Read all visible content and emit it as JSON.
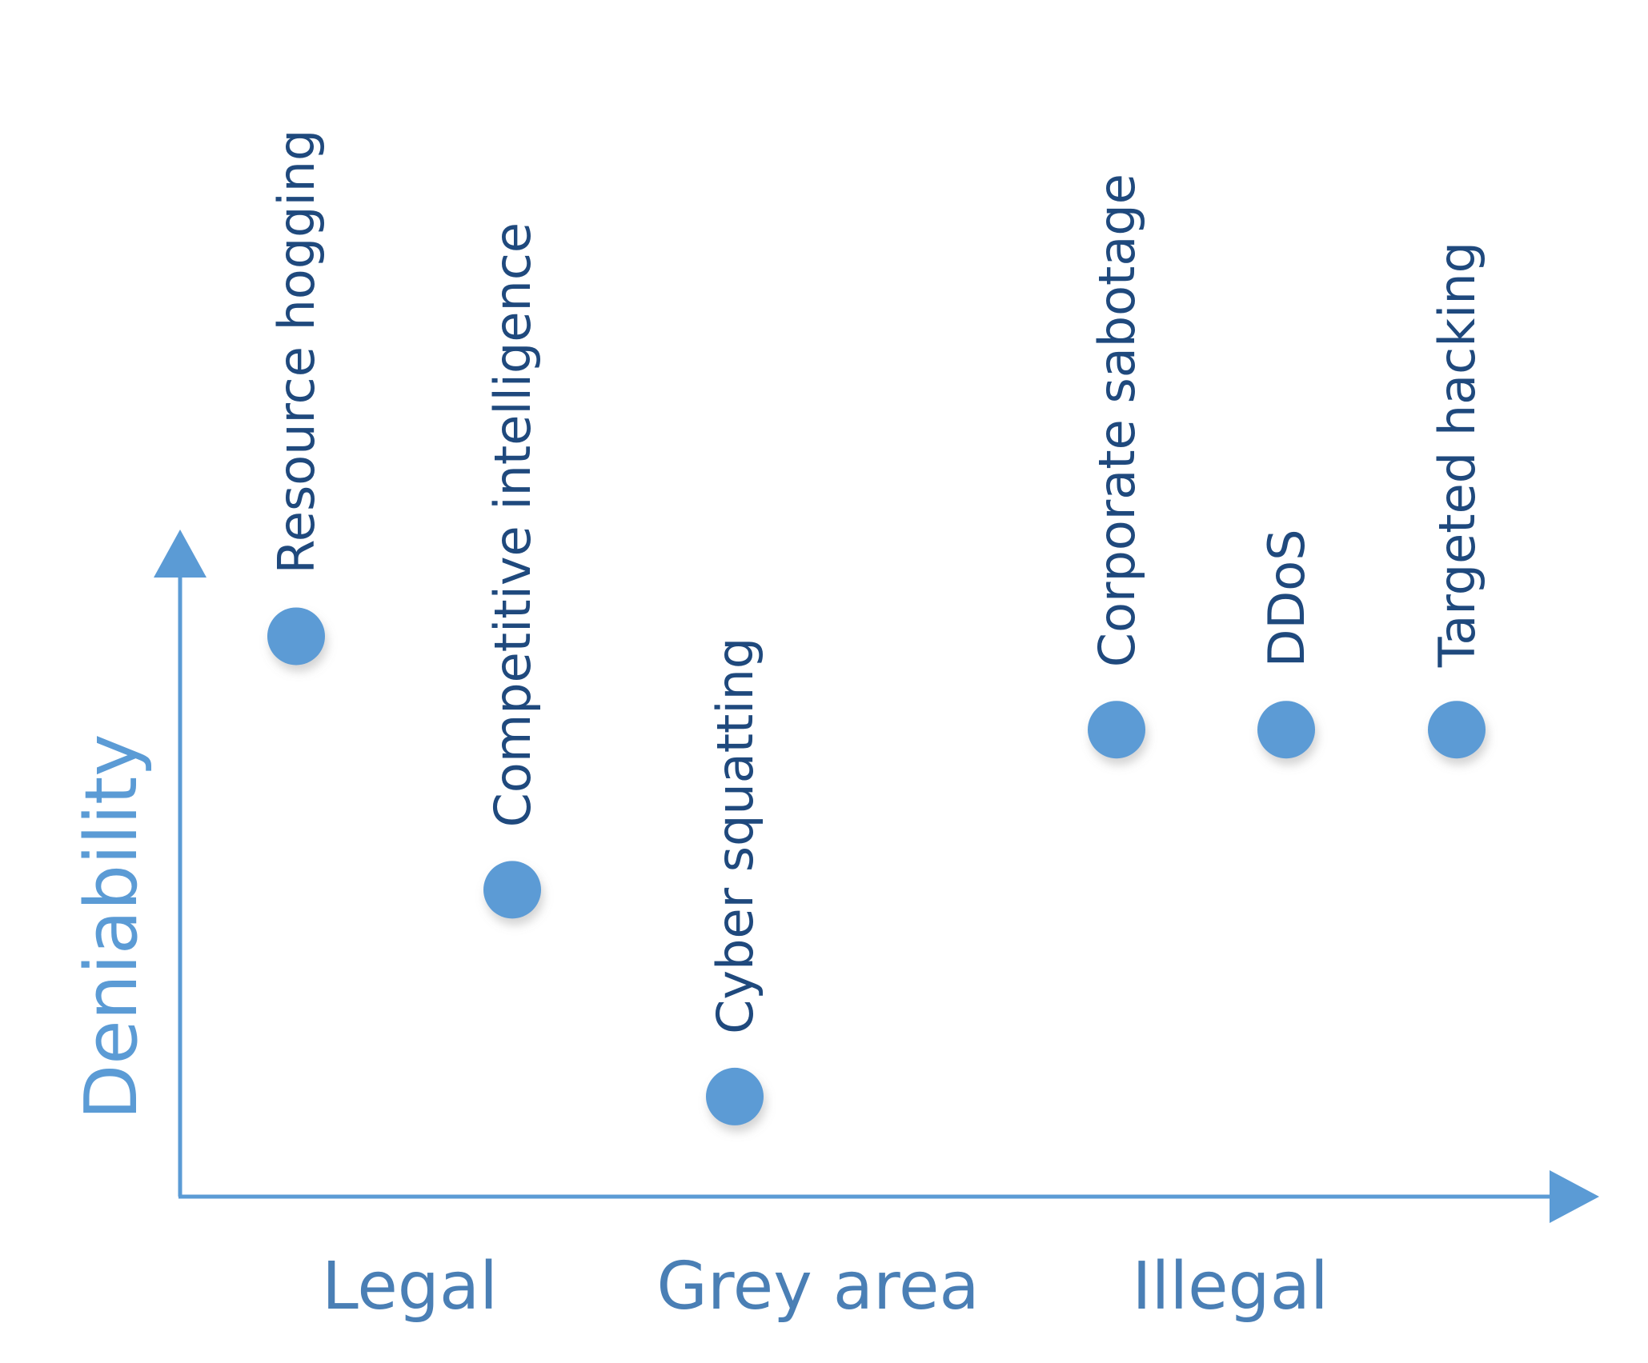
{
  "chart_data": {
    "type": "scatter",
    "title": "",
    "xlabel": "",
    "ylabel": "Deniability",
    "x_categories": [
      "Legal",
      "Grey area",
      "Illegal"
    ],
    "y_range": [
      0,
      10
    ],
    "grid": false,
    "legend": "none",
    "points": [
      {
        "label": "Resource hogging",
        "category": "Legal",
        "y": 8.4
      },
      {
        "label": "Competitive intelligence",
        "category": "Legal",
        "y": 4.6
      },
      {
        "label": "Cyber squatting",
        "category": "Grey area",
        "y": 1.5
      },
      {
        "label": "Corporate sabotage",
        "category": "Illegal",
        "y": 7.0
      },
      {
        "label": "DDoS",
        "category": "Illegal",
        "y": 7.0
      },
      {
        "label": "Targeted hacking",
        "category": "Illegal",
        "y": 7.0
      }
    ],
    "colors": {
      "axis": "#5b9bd5",
      "marker": "#5b9bd5",
      "point_label": "#1f497d",
      "category_label": "#4a7fb5"
    }
  }
}
